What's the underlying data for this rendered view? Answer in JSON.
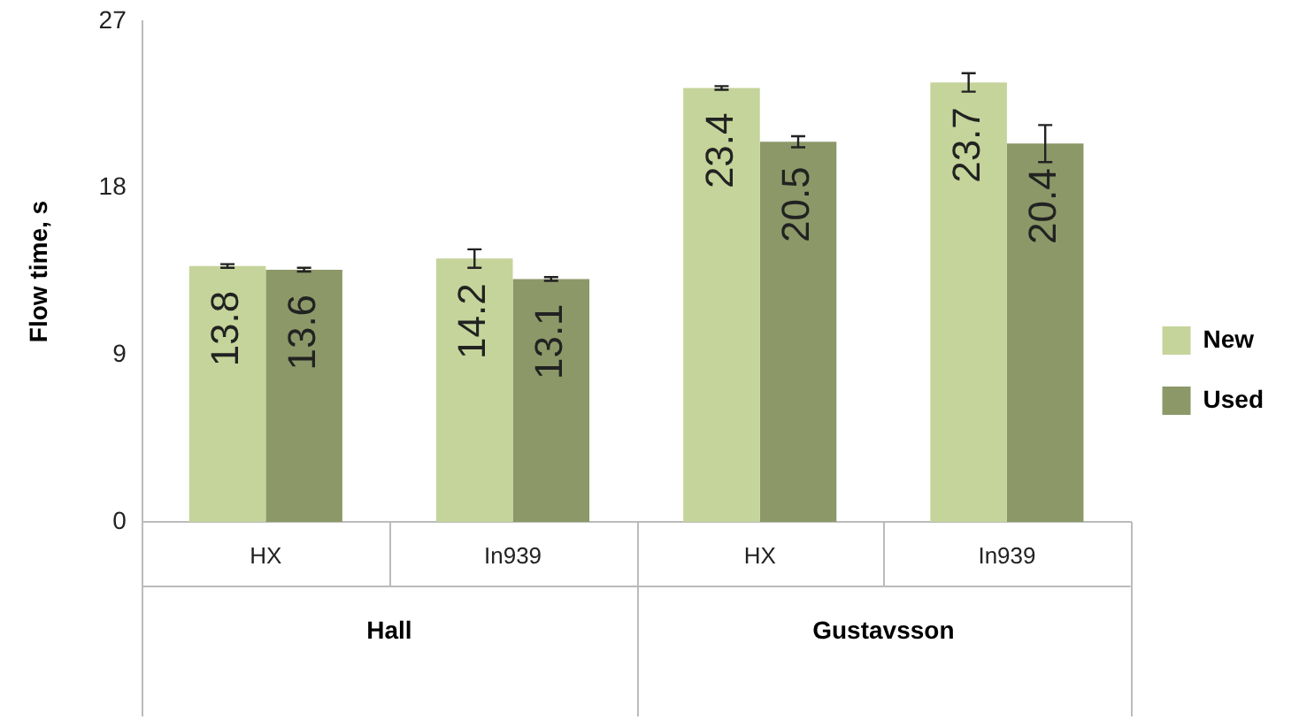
{
  "chart_data": {
    "type": "bar",
    "ylabel": "Flow time, s",
    "categories": [
      "HX",
      "In939",
      "HX",
      "In939"
    ],
    "series": [
      {
        "name": "New",
        "color": "#c5d49a",
        "values": [
          13.8,
          14.2,
          23.4,
          23.7
        ],
        "errors": [
          0.1,
          0.5,
          0.1,
          0.5
        ]
      },
      {
        "name": "Used",
        "color": "#8c9868",
        "values": [
          13.6,
          13.1,
          20.5,
          20.4
        ],
        "errors": [
          0.1,
          0.1,
          0.3,
          1.0
        ]
      }
    ],
    "annotations": [
      "Hall",
      "Gustavsson"
    ],
    "ylim": [
      0,
      27
    ],
    "yticks": [
      0,
      9,
      18,
      27
    ],
    "grid": false,
    "legend": "right",
    "data_labels": true
  }
}
